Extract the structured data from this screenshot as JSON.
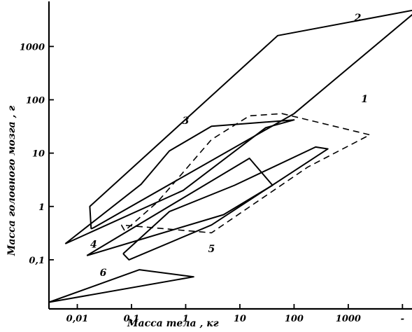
{
  "chart_data": {
    "type": "area",
    "xlabel": "Масса тела , кг",
    "ylabel": "Масса головного мозга , г",
    "xscale": "log",
    "yscale": "log",
    "xlim": [
      0.003,
      15000
    ],
    "ylim": [
      0.012,
      7000
    ],
    "x_ticks": [
      {
        "value": 0.01,
        "label": "0,01"
      },
      {
        "value": 0.1,
        "label": "0,1"
      },
      {
        "value": 1,
        "label": "1"
      },
      {
        "value": 10,
        "label": "10"
      },
      {
        "value": 100,
        "label": "100"
      },
      {
        "value": 1000,
        "label": "1000"
      },
      {
        "value": 10000,
        "label": "-"
      }
    ],
    "y_ticks": [
      {
        "value": 0.1,
        "label": "0,1"
      },
      {
        "value": 1,
        "label": "1"
      },
      {
        "value": 10,
        "label": "10"
      },
      {
        "value": 100,
        "label": "100"
      },
      {
        "value": 1000,
        "label": "1000"
      }
    ],
    "grid": false,
    "legend": "none",
    "series": [
      {
        "name": "1",
        "style": "dashed",
        "label_at": [
          2000,
          90
        ],
        "points": [
          [
            0.065,
            0.45
          ],
          [
            0.075,
            0.35
          ],
          [
            0.3,
            1.2
          ],
          [
            3,
            18
          ],
          [
            15,
            50
          ],
          [
            60,
            55
          ],
          [
            2500,
            22
          ],
          [
            180,
            5.5
          ],
          [
            3,
            0.32
          ],
          [
            0.065,
            0.45
          ]
        ]
      },
      {
        "name": "2",
        "style": "solid",
        "label_at": [
          1500,
          3000
        ],
        "points": [
          [
            0.018,
            0.38
          ],
          [
            0.017,
            1.0
          ],
          [
            50,
            1600
          ],
          [
            20000,
            5000
          ],
          [
            100,
            55
          ],
          [
            0.02,
            0.4
          ],
          [
            0.018,
            0.38
          ]
        ]
      },
      {
        "name": "3",
        "style": "solid",
        "label_at": [
          1,
          35
        ],
        "points": [
          [
            0.006,
            0.2
          ],
          [
            0.15,
            2.6
          ],
          [
            0.5,
            11
          ],
          [
            3,
            32
          ],
          [
            100,
            42
          ],
          [
            30,
            30
          ],
          [
            0.9,
            2.0
          ],
          [
            0.006,
            0.2
          ]
        ]
      },
      {
        "name": "4",
        "style": "solid",
        "label_at": [
          0.02,
          0.17
        ],
        "points": [
          [
            0.015,
            0.12
          ],
          [
            15,
            8
          ],
          [
            40,
            2.5
          ],
          [
            5,
            0.7
          ],
          [
            0.015,
            0.12
          ]
        ]
      },
      {
        "name": "5",
        "style": "solid",
        "label_at": [
          3,
          0.14
        ],
        "points": [
          [
            0.07,
            0.13
          ],
          [
            0.09,
            0.1
          ],
          [
            3,
            0.45
          ],
          [
            420,
            12
          ],
          [
            250,
            13
          ],
          [
            8,
            2.5
          ],
          [
            0.5,
            0.8
          ],
          [
            0.07,
            0.13
          ]
        ]
      },
      {
        "name": "6",
        "style": "solid",
        "label_at": [
          0.03,
          0.05
        ],
        "points": [
          [
            0.003,
            0.016
          ],
          [
            0.14,
            0.065
          ],
          [
            1.4,
            0.048
          ],
          [
            0.003,
            0.016
          ]
        ]
      }
    ]
  }
}
